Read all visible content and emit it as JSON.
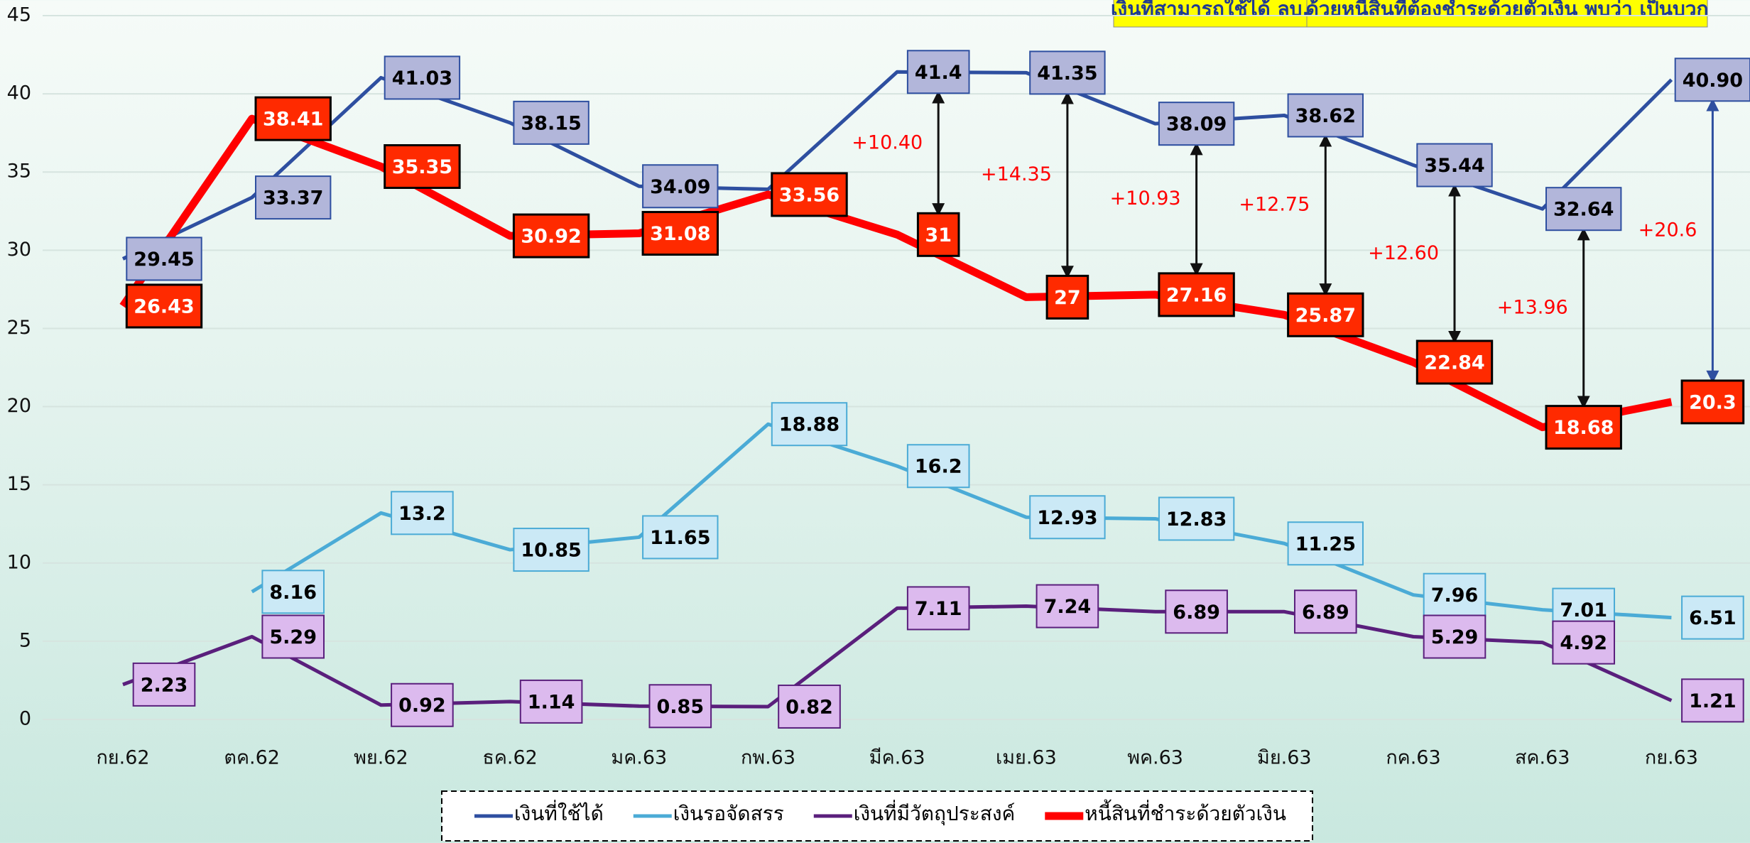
{
  "chart_data": {
    "type": "line",
    "title_parts": [
      "เงินที่สามารถใช้ได้ ลบ.",
      "ด้วยหนี้สินที่ต้องชำระด้วยตัวเงิน พบว่า เป็นบวก"
    ],
    "categories": [
      "กย.62",
      "ตค.62",
      "พย.62",
      "ธค.62",
      "มค.63",
      "กพ.63",
      "มีค.63",
      "เมย.63",
      "พค.63",
      "มิย.63",
      "กค.63",
      "สค.63",
      "กย.63"
    ],
    "series": [
      {
        "name": "เงินที่ใช้ได้",
        "color": "#2e4fa0",
        "box": "#b2b6da",
        "values": [
          29.45,
          33.37,
          41.03,
          38.15,
          34.09,
          33.9,
          41.4,
          41.35,
          38.09,
          38.62,
          35.44,
          32.64,
          40.9
        ],
        "value_labels": [
          "29.45",
          "33.37",
          "41.03",
          "38.15",
          "34.09",
          null,
          "41.4",
          "41.35",
          "38.09",
          "38.62",
          "35.44",
          "32.64",
          "40.90"
        ]
      },
      {
        "name": "เงินรอจัดสรร",
        "color": "#4babd6",
        "box": "#cbe9f6",
        "values": [
          null,
          8.16,
          13.2,
          10.85,
          11.65,
          18.88,
          16.2,
          12.93,
          12.83,
          11.25,
          7.96,
          7.01,
          6.51
        ]
      },
      {
        "name": "เงินที่มีวัตถุประสงค์",
        "color": "#5a1f7c",
        "box": "#dcbaee",
        "values": [
          2.23,
          5.29,
          0.92,
          1.14,
          0.85,
          0.82,
          7.11,
          7.24,
          6.89,
          6.89,
          5.29,
          4.92,
          1.21
        ]
      },
      {
        "name": "หนี้สินที่ชำระด้วยตัวเงิน",
        "color": "#ff0000",
        "box": "#ff2a00",
        "values": [
          26.43,
          38.41,
          35.35,
          30.92,
          31.08,
          33.56,
          31,
          27,
          27.16,
          25.87,
          22.84,
          18.68,
          20.3
        ]
      }
    ],
    "annotations": [
      "+10.40",
      "+14.35",
      "+10.93",
      "+12.75",
      "+12.60",
      "+13.96",
      "+20.6"
    ],
    "ylim": [
      0,
      45
    ],
    "yticks": [
      0,
      5,
      10,
      15,
      20,
      25,
      30,
      35,
      40,
      45
    ],
    "grid": true
  }
}
